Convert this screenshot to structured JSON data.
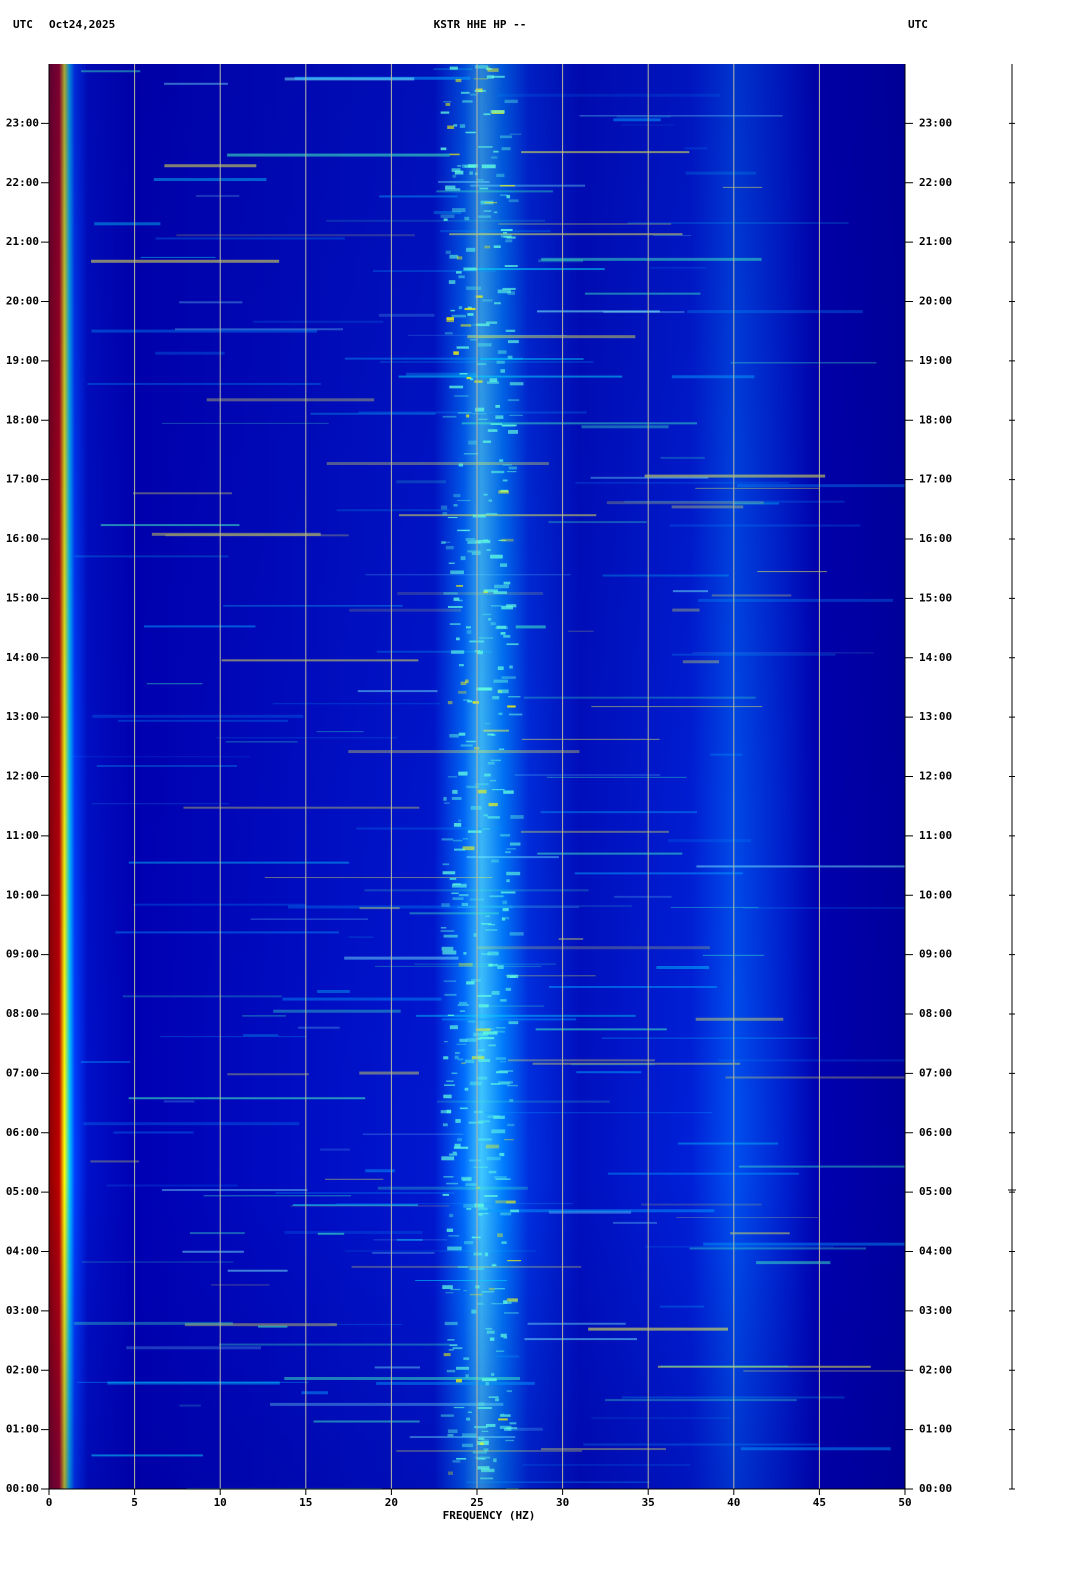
{
  "chart_data": {
    "type": "spectrogram",
    "title": "KSTR HHE HP --",
    "left_header": "UTC",
    "date": "Oct24,2025",
    "right_header": "UTC",
    "xlabel": "FREQUENCY (HZ)",
    "xlim": [
      0,
      50
    ],
    "xticks": [
      0,
      5,
      10,
      15,
      20,
      25,
      30,
      35,
      40,
      45,
      50
    ],
    "ylim": [
      0,
      24
    ],
    "yticks": [
      {
        "value": 0,
        "label": "00:00"
      },
      {
        "value": 1,
        "label": "01:00"
      },
      {
        "value": 2,
        "label": "02:00"
      },
      {
        "value": 3,
        "label": "03:00"
      },
      {
        "value": 4,
        "label": "04:00"
      },
      {
        "value": 5,
        "label": "05:00"
      },
      {
        "value": 6,
        "label": "06:00"
      },
      {
        "value": 7,
        "label": "07:00"
      },
      {
        "value": 8,
        "label": "08:00"
      },
      {
        "value": 9,
        "label": "09:00"
      },
      {
        "value": 10,
        "label": "10:00"
      },
      {
        "value": 11,
        "label": "11:00"
      },
      {
        "value": 12,
        "label": "12:00"
      },
      {
        "value": 13,
        "label": "13:00"
      },
      {
        "value": 14,
        "label": "14:00"
      },
      {
        "value": 15,
        "label": "15:00"
      },
      {
        "value": 16,
        "label": "16:00"
      },
      {
        "value": 17,
        "label": "17:00"
      },
      {
        "value": 18,
        "label": "18:00"
      },
      {
        "value": 19,
        "label": "19:00"
      },
      {
        "value": 20,
        "label": "20:00"
      },
      {
        "value": 21,
        "label": "21:00"
      },
      {
        "value": 22,
        "label": "22:00"
      },
      {
        "value": 23,
        "label": "23:00"
      }
    ],
    "grid": true
  }
}
